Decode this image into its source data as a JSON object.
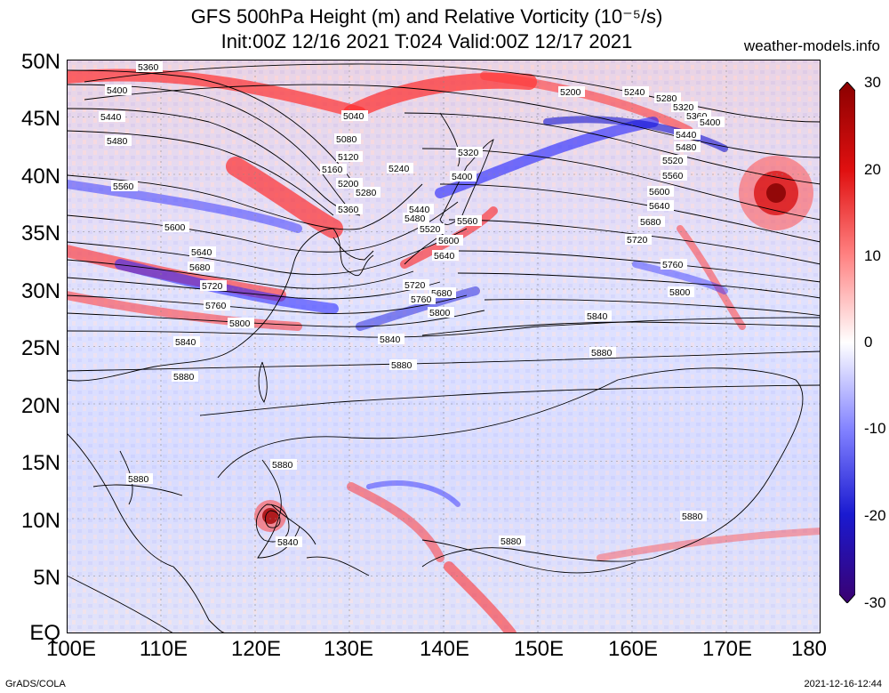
{
  "title_line1": "GFS 500hPa Height (m) and Relative Vorticity (10⁻⁵/s)",
  "title_line2": "Init:00Z 12/16 2021 T:024 Valid:00Z 12/17 2021",
  "site": "weather-models.info",
  "lat_labels": [
    "50N",
    "45N",
    "40N",
    "35N",
    "30N",
    "25N",
    "20N",
    "15N",
    "10N",
    "5N",
    "EQ"
  ],
  "lon_labels": [
    "100E",
    "110E",
    "120E",
    "130E",
    "140E",
    "150E",
    "160E",
    "170E",
    "180"
  ],
  "colorbar_labels": [
    "30",
    "20",
    "10",
    "0",
    "-10",
    "-20",
    "-30"
  ],
  "colorbar_colors": [
    "#3a0070",
    "#1a1ad0",
    "#6a6aff",
    "#ffffff",
    "#ff6a6a",
    "#e01010",
    "#8a0000"
  ],
  "contour_labels": [
    "5360",
    "5400",
    "5440",
    "5480",
    "5560",
    "5600",
    "5640",
    "5680",
    "5720",
    "5760",
    "5800",
    "5840",
    "5880",
    "5040",
    "5080",
    "5120",
    "5160",
    "5200",
    "5240",
    "5280",
    "5320",
    "5360",
    "5400",
    "5440",
    "5480",
    "5520",
    "5560",
    "5600",
    "5640",
    "5680",
    "5720",
    "5760",
    "5800",
    "5840",
    "5880",
    "5200",
    "5240",
    "5280",
    "5320",
    "5360",
    "5400",
    "5440",
    "5480",
    "5520",
    "5560",
    "5600",
    "5640",
    "5680",
    "5720",
    "5760",
    "5800",
    "5840",
    "5880",
    "5880",
    "5880",
    "5880",
    "5880",
    "5880",
    "5840"
  ],
  "footer_left": "GrADS/COLA",
  "footer_right": "2021-12-16-12:44"
}
